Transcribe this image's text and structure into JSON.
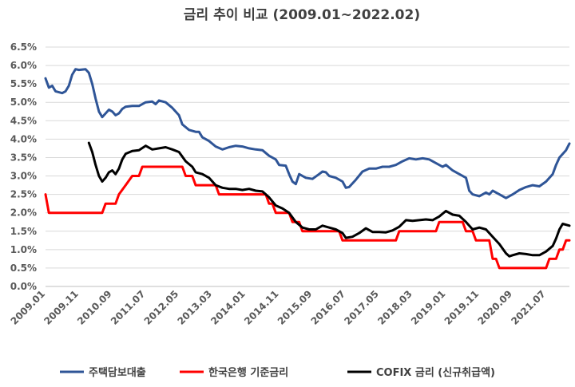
{
  "chart_data": {
    "type": "line",
    "title": "금리 추이 비교 (2009.01~2022.02)",
    "xlabel": "",
    "ylabel": "",
    "ylim": [
      0,
      6.5
    ],
    "yticks": [
      "0.0%",
      "0.5%",
      "1.0%",
      "1.5%",
      "2.0%",
      "2.5%",
      "3.0%",
      "3.5%",
      "4.0%",
      "4.5%",
      "5.0%",
      "5.5%",
      "6.0%",
      "6.5%"
    ],
    "xticks": [
      "2009.01",
      "2009.11",
      "2010.09",
      "2011.07",
      "2012.05",
      "2013.03",
      "2014.01",
      "2014.11",
      "2015.09",
      "2016.07",
      "2017.05",
      "2018.03",
      "2019.01",
      "2019.11",
      "2020.09",
      "2021.07"
    ],
    "grid": true,
    "legend_position": "bottom",
    "series": [
      {
        "name": "주택담보대출",
        "color": "#2f5597",
        "points": [
          [
            "2009.01",
            5.65
          ],
          [
            "2009.02",
            5.4
          ],
          [
            "2009.03",
            5.45
          ],
          [
            "2009.04",
            5.3
          ],
          [
            "2009.06",
            5.25
          ],
          [
            "2009.07",
            5.3
          ],
          [
            "2009.08",
            5.45
          ],
          [
            "2009.09",
            5.75
          ],
          [
            "2009.10",
            5.9
          ],
          [
            "2009.11",
            5.88
          ],
          [
            "2010.01",
            5.9
          ],
          [
            "2010.02",
            5.8
          ],
          [
            "2010.03",
            5.5
          ],
          [
            "2010.04",
            5.1
          ],
          [
            "2010.05",
            4.75
          ],
          [
            "2010.06",
            4.6
          ],
          [
            "2010.07",
            4.7
          ],
          [
            "2010.08",
            4.8
          ],
          [
            "2010.09",
            4.75
          ],
          [
            "2010.10",
            4.65
          ],
          [
            "2010.11",
            4.7
          ],
          [
            "2010.12",
            4.82
          ],
          [
            "2011.01",
            4.88
          ],
          [
            "2011.03",
            4.9
          ],
          [
            "2011.05",
            4.9
          ],
          [
            "2011.07",
            5.0
          ],
          [
            "2011.09",
            5.02
          ],
          [
            "2011.10",
            4.95
          ],
          [
            "2011.11",
            5.05
          ],
          [
            "2012.01",
            5.0
          ],
          [
            "2012.03",
            4.85
          ],
          [
            "2012.05",
            4.65
          ],
          [
            "2012.06",
            4.4
          ],
          [
            "2012.08",
            4.25
          ],
          [
            "2012.10",
            4.2
          ],
          [
            "2012.11",
            4.2
          ],
          [
            "2012.12",
            4.05
          ],
          [
            "2013.02",
            3.95
          ],
          [
            "2013.04",
            3.8
          ],
          [
            "2013.06",
            3.72
          ],
          [
            "2013.08",
            3.78
          ],
          [
            "2013.10",
            3.82
          ],
          [
            "2013.12",
            3.8
          ],
          [
            "2014.02",
            3.75
          ],
          [
            "2014.04",
            3.72
          ],
          [
            "2014.06",
            3.7
          ],
          [
            "2014.08",
            3.55
          ],
          [
            "2014.10",
            3.45
          ],
          [
            "2014.11",
            3.3
          ],
          [
            "2015.01",
            3.28
          ],
          [
            "2015.02",
            3.05
          ],
          [
            "2015.03",
            2.85
          ],
          [
            "2015.04",
            2.78
          ],
          [
            "2015.05",
            3.05
          ],
          [
            "2015.07",
            2.95
          ],
          [
            "2015.09",
            2.92
          ],
          [
            "2015.11",
            3.05
          ],
          [
            "2015.12",
            3.12
          ],
          [
            "2016.01",
            3.1
          ],
          [
            "2016.02",
            3.0
          ],
          [
            "2016.04",
            2.95
          ],
          [
            "2016.06",
            2.85
          ],
          [
            "2016.07",
            2.68
          ],
          [
            "2016.08",
            2.7
          ],
          [
            "2016.10",
            2.9
          ],
          [
            "2016.12",
            3.12
          ],
          [
            "2017.02",
            3.2
          ],
          [
            "2017.04",
            3.2
          ],
          [
            "2017.06",
            3.25
          ],
          [
            "2017.08",
            3.25
          ],
          [
            "2017.10",
            3.3
          ],
          [
            "2017.12",
            3.4
          ],
          [
            "2018.02",
            3.48
          ],
          [
            "2018.04",
            3.45
          ],
          [
            "2018.06",
            3.48
          ],
          [
            "2018.08",
            3.45
          ],
          [
            "2018.10",
            3.35
          ],
          [
            "2018.12",
            3.25
          ],
          [
            "2019.01",
            3.3
          ],
          [
            "2019.03",
            3.15
          ],
          [
            "2019.05",
            3.05
          ],
          [
            "2019.07",
            2.95
          ],
          [
            "2019.08",
            2.6
          ],
          [
            "2019.09",
            2.5
          ],
          [
            "2019.11",
            2.45
          ],
          [
            "2020.01",
            2.55
          ],
          [
            "2020.02",
            2.5
          ],
          [
            "2020.03",
            2.6
          ],
          [
            "2020.05",
            2.5
          ],
          [
            "2020.07",
            2.4
          ],
          [
            "2020.09",
            2.5
          ],
          [
            "2020.11",
            2.62
          ],
          [
            "2021.01",
            2.7
          ],
          [
            "2021.03",
            2.75
          ],
          [
            "2021.05",
            2.72
          ],
          [
            "2021.07",
            2.85
          ],
          [
            "2021.09",
            3.05
          ],
          [
            "2021.10",
            3.3
          ],
          [
            "2021.11",
            3.5
          ],
          [
            "2022.01",
            3.7
          ],
          [
            "2022.02",
            3.88
          ]
        ]
      },
      {
        "name": "한국은행 기준금리",
        "color": "#ff0000",
        "points": [
          [
            "2009.01",
            2.5
          ],
          [
            "2009.02",
            2.0
          ],
          [
            "2010.06",
            2.0
          ],
          [
            "2010.07",
            2.25
          ],
          [
            "2010.10",
            2.25
          ],
          [
            "2010.11",
            2.5
          ],
          [
            "2011.01",
            2.75
          ],
          [
            "2011.03",
            3.0
          ],
          [
            "2011.05",
            3.0
          ],
          [
            "2011.06",
            3.25
          ],
          [
            "2012.06",
            3.25
          ],
          [
            "2012.07",
            3.0
          ],
          [
            "2012.09",
            3.0
          ],
          [
            "2012.10",
            2.75
          ],
          [
            "2013.04",
            2.75
          ],
          [
            "2013.05",
            2.5
          ],
          [
            "2014.07",
            2.5
          ],
          [
            "2014.08",
            2.25
          ],
          [
            "2014.09",
            2.25
          ],
          [
            "2014.10",
            2.0
          ],
          [
            "2015.02",
            2.0
          ],
          [
            "2015.03",
            1.75
          ],
          [
            "2015.05",
            1.75
          ],
          [
            "2015.06",
            1.5
          ],
          [
            "2016.05",
            1.5
          ],
          [
            "2016.06",
            1.25
          ],
          [
            "2017.10",
            1.25
          ],
          [
            "2017.11",
            1.5
          ],
          [
            "2018.10",
            1.5
          ],
          [
            "2018.11",
            1.75
          ],
          [
            "2019.06",
            1.75
          ],
          [
            "2019.07",
            1.5
          ],
          [
            "2019.09",
            1.5
          ],
          [
            "2019.10",
            1.25
          ],
          [
            "2020.02",
            1.25
          ],
          [
            "2020.03",
            0.75
          ],
          [
            "2020.04",
            0.75
          ],
          [
            "2020.05",
            0.5
          ],
          [
            "2021.07",
            0.5
          ],
          [
            "2021.08",
            0.75
          ],
          [
            "2021.10",
            0.75
          ],
          [
            "2021.11",
            1.0
          ],
          [
            "2021.12",
            1.0
          ],
          [
            "2022.01",
            1.25
          ],
          [
            "2022.02",
            1.25
          ]
        ]
      },
      {
        "name": "COFIX 금리 (신규취급액)",
        "color": "#000000",
        "points": [
          [
            "2010.02",
            3.9
          ],
          [
            "2010.03",
            3.65
          ],
          [
            "2010.04",
            3.3
          ],
          [
            "2010.05",
            3.0
          ],
          [
            "2010.06",
            2.85
          ],
          [
            "2010.07",
            2.95
          ],
          [
            "2010.08",
            3.1
          ],
          [
            "2010.09",
            3.15
          ],
          [
            "2010.10",
            3.05
          ],
          [
            "2010.11",
            3.2
          ],
          [
            "2010.12",
            3.45
          ],
          [
            "2011.01",
            3.6
          ],
          [
            "2011.03",
            3.68
          ],
          [
            "2011.05",
            3.7
          ],
          [
            "2011.07",
            3.82
          ],
          [
            "2011.09",
            3.72
          ],
          [
            "2011.11",
            3.75
          ],
          [
            "2012.01",
            3.78
          ],
          [
            "2012.03",
            3.72
          ],
          [
            "2012.05",
            3.65
          ],
          [
            "2012.07",
            3.4
          ],
          [
            "2012.09",
            3.25
          ],
          [
            "2012.10",
            3.1
          ],
          [
            "2012.12",
            3.05
          ],
          [
            "2013.02",
            2.95
          ],
          [
            "2013.04",
            2.75
          ],
          [
            "2013.06",
            2.68
          ],
          [
            "2013.08",
            2.65
          ],
          [
            "2013.10",
            2.65
          ],
          [
            "2013.12",
            2.62
          ],
          [
            "2014.02",
            2.65
          ],
          [
            "2014.04",
            2.6
          ],
          [
            "2014.06",
            2.58
          ],
          [
            "2014.08",
            2.42
          ],
          [
            "2014.10",
            2.2
          ],
          [
            "2014.12",
            2.12
          ],
          [
            "2015.02",
            2.0
          ],
          [
            "2015.04",
            1.75
          ],
          [
            "2015.06",
            1.6
          ],
          [
            "2015.08",
            1.55
          ],
          [
            "2015.10",
            1.55
          ],
          [
            "2015.12",
            1.65
          ],
          [
            "2016.02",
            1.6
          ],
          [
            "2016.04",
            1.55
          ],
          [
            "2016.06",
            1.45
          ],
          [
            "2016.07",
            1.32
          ],
          [
            "2016.09",
            1.35
          ],
          [
            "2016.11",
            1.45
          ],
          [
            "2017.01",
            1.58
          ],
          [
            "2017.03",
            1.48
          ],
          [
            "2017.05",
            1.48
          ],
          [
            "2017.07",
            1.47
          ],
          [
            "2017.09",
            1.52
          ],
          [
            "2017.11",
            1.62
          ],
          [
            "2018.01",
            1.8
          ],
          [
            "2018.03",
            1.78
          ],
          [
            "2018.05",
            1.8
          ],
          [
            "2018.07",
            1.82
          ],
          [
            "2018.09",
            1.8
          ],
          [
            "2018.11",
            1.9
          ],
          [
            "2019.01",
            2.05
          ],
          [
            "2019.03",
            1.95
          ],
          [
            "2019.05",
            1.92
          ],
          [
            "2019.07",
            1.75
          ],
          [
            "2019.09",
            1.55
          ],
          [
            "2019.11",
            1.6
          ],
          [
            "2020.01",
            1.55
          ],
          [
            "2020.03",
            1.35
          ],
          [
            "2020.05",
            1.15
          ],
          [
            "2020.07",
            0.9
          ],
          [
            "2020.08",
            0.82
          ],
          [
            "2020.09",
            0.85
          ],
          [
            "2020.11",
            0.9
          ],
          [
            "2021.01",
            0.88
          ],
          [
            "2021.03",
            0.85
          ],
          [
            "2021.05",
            0.85
          ],
          [
            "2021.07",
            0.95
          ],
          [
            "2021.09",
            1.1
          ],
          [
            "2021.10",
            1.3
          ],
          [
            "2021.11",
            1.55
          ],
          [
            "2021.12",
            1.7
          ],
          [
            "2022.02",
            1.65
          ]
        ]
      }
    ]
  }
}
